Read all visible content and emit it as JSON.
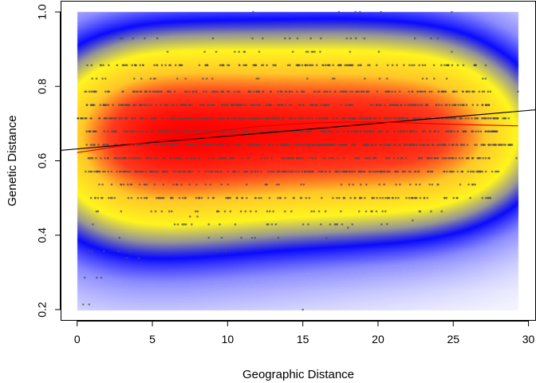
{
  "chart_data": {
    "type": "scatter",
    "xlabel": "Geographic Distance",
    "ylabel": "Genetic Distance",
    "xlim": [
      -1.1,
      30.5
    ],
    "ylim": [
      0.17,
      1.03
    ],
    "x_ticks": [
      0,
      5,
      10,
      15,
      20,
      25,
      30
    ],
    "y_ticks": [
      0.2,
      0.4,
      0.6,
      0.8,
      1.0
    ],
    "x_tick_labels": [
      "0",
      "5",
      "10",
      "15",
      "20",
      "25",
      "30"
    ],
    "y_tick_labels": [
      "0.2",
      "0.4",
      "0.6",
      "0.8",
      "1.0"
    ],
    "grid": false,
    "point_color": "#4d4d4d",
    "density_levels": [
      0,
      8,
      22,
      45,
      70
    ],
    "density_colors": [
      "#ffffff",
      "#0000ff",
      "#ffff00",
      "#ff0000"
    ],
    "density_sources": [
      {
        "x": 0.5,
        "y": 0.56,
        "w": 1.8
      },
      {
        "x": 3.0,
        "y": 0.645,
        "w": 3.8
      },
      {
        "x": 3.5,
        "y": 0.575,
        "w": 3.0
      },
      {
        "x": 5.2,
        "y": 0.715,
        "w": 2.6
      },
      {
        "x": 6.5,
        "y": 0.5,
        "w": 1.2
      },
      {
        "x": 8.5,
        "y": 0.645,
        "w": 1.8
      },
      {
        "x": 11.5,
        "y": 0.715,
        "w": 1.4
      },
      {
        "x": 13.5,
        "y": 0.645,
        "w": 1.4
      },
      {
        "x": 16.5,
        "y": 0.75,
        "w": 1.6
      },
      {
        "x": 18.8,
        "y": 0.68,
        "w": 1.5
      },
      {
        "x": 21.5,
        "y": 0.715,
        "w": 1.0
      },
      {
        "x": 19.0,
        "y": 0.86,
        "w": 0.9
      },
      {
        "x": 23.8,
        "y": 0.62,
        "w": 0.9
      },
      {
        "x": 25.8,
        "y": 0.645,
        "w": 0.8
      },
      {
        "x": 15.0,
        "y": 0.43,
        "w": 0.28
      }
    ],
    "point_rows": [
      {
        "y": 0.857,
        "x_min": 0.5,
        "x_max": 27.2,
        "n": 130
      },
      {
        "y": 0.786,
        "x_min": 0.5,
        "x_max": 27.6,
        "n": 170
      },
      {
        "y": 0.75,
        "x_min": 0.6,
        "x_max": 27.4,
        "n": 200
      },
      {
        "y": 0.714,
        "x_min": 0.0,
        "x_max": 28.8,
        "n": 290
      },
      {
        "y": 0.679,
        "x_min": 0.5,
        "x_max": 28.0,
        "n": 240
      },
      {
        "y": 0.643,
        "x_min": 0.5,
        "x_max": 29.0,
        "n": 290
      },
      {
        "y": 0.607,
        "x_min": 0.5,
        "x_max": 27.8,
        "n": 170
      },
      {
        "y": 0.571,
        "x_min": 0.5,
        "x_max": 28.2,
        "n": 210
      },
      {
        "y": 0.536,
        "x_min": 0.8,
        "x_max": 26.5,
        "n": 55
      },
      {
        "y": 0.5,
        "x_min": 0.5,
        "x_max": 27.5,
        "n": 120
      },
      {
        "y": 0.464,
        "x_min": 0.8,
        "x_max": 25.5,
        "n": 40
      },
      {
        "y": 0.929,
        "x_min": 2.0,
        "x_max": 26.0,
        "n": 22
      },
      {
        "y": 0.893,
        "x_min": 6.0,
        "x_max": 27.0,
        "n": 18
      },
      {
        "y": 0.821,
        "x_min": 0.8,
        "x_max": 27.5,
        "n": 28
      },
      {
        "y": 0.429,
        "x_min": 0.4,
        "x_max": 22.0,
        "n": 24
      },
      {
        "y": 0.393,
        "x_min": 1.5,
        "x_max": 20.0,
        "n": 8
      },
      {
        "y": 0.357,
        "x_min": 0.6,
        "x_max": 15.5,
        "n": 8
      }
    ],
    "points_extra": [
      {
        "x": 11.7,
        "y": 1.0
      },
      {
        "x": 17.4,
        "y": 1.0
      },
      {
        "x": 18.5,
        "y": 1.0
      },
      {
        "x": 18.8,
        "y": 1.0
      },
      {
        "x": 20.2,
        "y": 1.0
      },
      {
        "x": 24.9,
        "y": 1.0
      },
      {
        "x": 0.4,
        "y": 0.214
      },
      {
        "x": 0.8,
        "y": 0.214
      },
      {
        "x": 15.0,
        "y": 0.2
      },
      {
        "x": 0.5,
        "y": 0.286
      },
      {
        "x": 1.3,
        "y": 0.286
      },
      {
        "x": 1.6,
        "y": 0.286
      },
      {
        "x": 3.3,
        "y": 0.339
      },
      {
        "x": 4.1,
        "y": 0.339
      },
      {
        "x": 7.5,
        "y": 0.45
      },
      {
        "x": 8.0,
        "y": 0.45
      },
      {
        "x": 22.3,
        "y": 0.44
      },
      {
        "x": 18.0,
        "y": 0.42
      },
      {
        "x": 20.6,
        "y": 0.43
      },
      {
        "x": 29.3,
        "y": 0.786
      },
      {
        "x": 29.2,
        "y": 0.607
      }
    ],
    "trend_lines": [
      {
        "kind": "linear",
        "color": "#000000",
        "points": [
          [
            -1.1,
            0.628
          ],
          [
            30.5,
            0.737
          ]
        ]
      },
      {
        "kind": "loess",
        "color": "#e00000",
        "points": [
          [
            0,
            0.622
          ],
          [
            2,
            0.634
          ],
          [
            4,
            0.646
          ],
          [
            6,
            0.658
          ],
          [
            8,
            0.671
          ],
          [
            10,
            0.683
          ],
          [
            12,
            0.692
          ],
          [
            14,
            0.698
          ],
          [
            16,
            0.702
          ],
          [
            18,
            0.704
          ],
          [
            20,
            0.704
          ],
          [
            22,
            0.702
          ],
          [
            24,
            0.699
          ],
          [
            26,
            0.697
          ],
          [
            28,
            0.695
          ],
          [
            29.3,
            0.694
          ]
        ]
      }
    ]
  }
}
